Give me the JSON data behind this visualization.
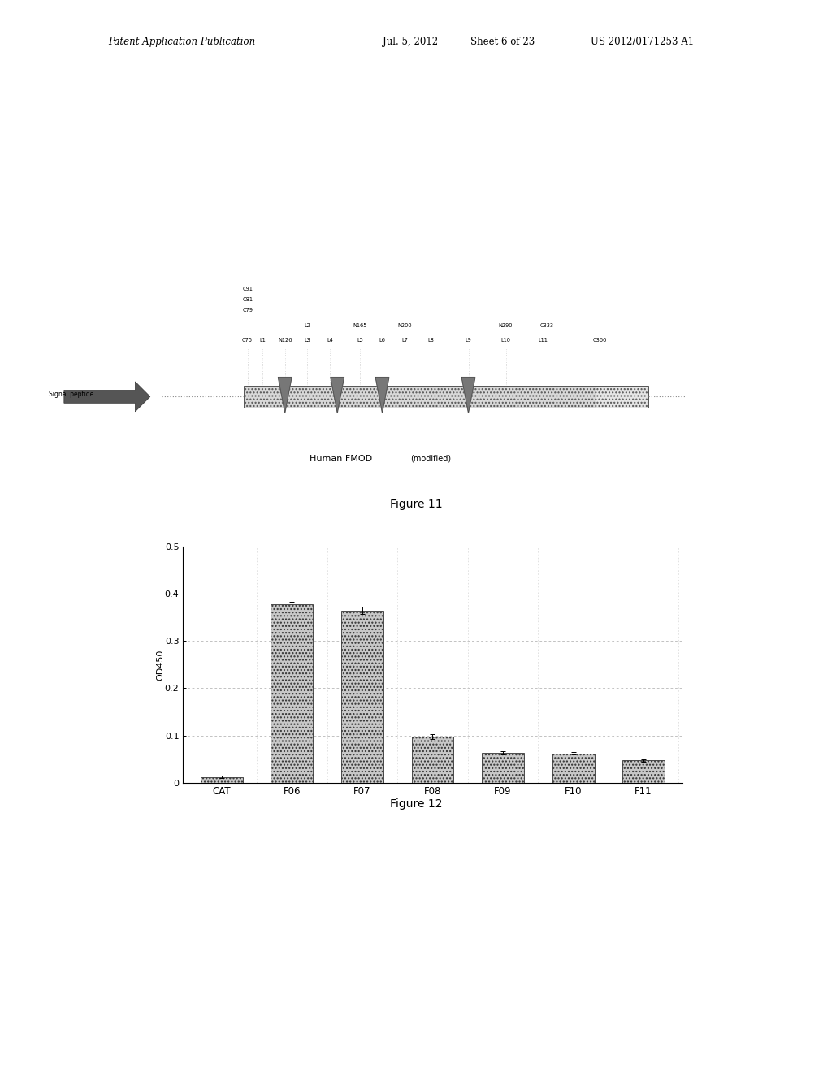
{
  "page_header_left": "Patent Application Publication",
  "page_header_mid": "Jul. 5, 2012",
  "page_header_mid2": "Sheet 6 of 23",
  "page_header_right": "US 2012/0171253 A1",
  "fig11_title": "Figure 11",
  "fig12_title": "Figure 12",
  "fig11_label": "Human FMOD",
  "fig11_label2": "(modified)",
  "fig11_signal": "Signal peptide",
  "fig12_categories": [
    "CAT",
    "F06",
    "F07",
    "F08",
    "F09",
    "F10",
    "F11"
  ],
  "fig12_values": [
    0.012,
    0.378,
    0.365,
    0.097,
    0.063,
    0.062,
    0.047
  ],
  "fig12_errors": [
    0.003,
    0.005,
    0.008,
    0.005,
    0.003,
    0.003,
    0.003
  ],
  "fig12_ylabel": "OD450",
  "fig12_ylim": [
    0,
    0.5
  ],
  "fig12_yticks": [
    0,
    0.1,
    0.2,
    0.3,
    0.4,
    0.5
  ],
  "background_color": "#ffffff",
  "text_color": "#000000"
}
